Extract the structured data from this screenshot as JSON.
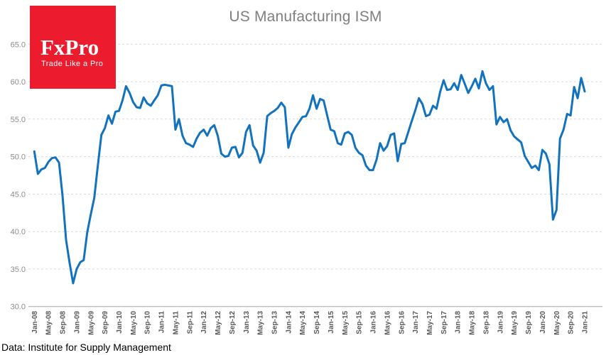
{
  "title": "US Manufacturing ISM",
  "footer": {
    "text": "Data: Institute for Supply Management"
  },
  "logo": {
    "brand": "FxPro",
    "tagline": "Trade Like a Pro",
    "background": "#EC1B2E"
  },
  "colors": {
    "line": "#1272BE",
    "grid": "#D9D9D9",
    "axis_line": "#BFBFBF",
    "title_text": "#7F7F7F",
    "y_tick_text": "#8C8C8C",
    "x_tick_text": "#595959"
  },
  "chart_data": {
    "type": "line",
    "title": "US Manufacturing ISM",
    "xlabel": "",
    "ylabel": "",
    "ylim": [
      30.0,
      65.0
    ],
    "grid": "dashed horizontal",
    "legend": "none",
    "y_ticks": [
      30,
      35,
      40,
      45,
      50,
      55,
      60,
      65
    ],
    "y_tick_labels": [
      "30.0",
      "35.0",
      "40.0",
      "45.0",
      "50.0",
      "55.0",
      "60.0",
      "65.0"
    ],
    "x_tick_every_months": 4,
    "x_tick_labels": [
      "Jan-08",
      "May-08",
      "Sep-08",
      "Jan-09",
      "May-09",
      "Sep-09",
      "Jan-10",
      "May-10",
      "Sep-10",
      "Jan-11",
      "May-11",
      "Sep-11",
      "Jan-12",
      "May-12",
      "Sep-12",
      "Jan-13",
      "May-13",
      "Sep-13",
      "Jan-14",
      "May-14",
      "Sep-14",
      "Jan-15",
      "May-15",
      "Sep-15",
      "Jan-16",
      "May-16",
      "Sep-16",
      "Jan-17",
      "May-17",
      "Sep-17",
      "Jan-18",
      "May-18",
      "Sep-18",
      "Jan-19",
      "May-19",
      "Sep-19",
      "Jan-20",
      "May-20",
      "Sep-20",
      "Jan-21"
    ],
    "x_range": "monthly from Jan-2008 to Jan-2021",
    "values": [
      50.7,
      47.7,
      48.3,
      48.5,
      49.3,
      49.8,
      49.9,
      49.2,
      44.8,
      38.9,
      35.8,
      33.1,
      35.0,
      35.9,
      36.2,
      39.9,
      42.3,
      44.5,
      48.8,
      52.9,
      53.8,
      55.5,
      54.4,
      56.0,
      56.1,
      57.5,
      59.4,
      58.5,
      57.3,
      56.6,
      56.5,
      57.9,
      57.1,
      56.8,
      57.5,
      58.2,
      59.5,
      59.6,
      59.5,
      59.4,
      53.6,
      55.0,
      52.8,
      51.8,
      51.6,
      51.3,
      52.4,
      53.2,
      53.6,
      52.8,
      53.8,
      54.2,
      52.8,
      50.4,
      50.0,
      50.1,
      51.2,
      51.3,
      49.9,
      50.5,
      53.3,
      54.2,
      51.5,
      50.8,
      49.2,
      50.5,
      55.4,
      55.8,
      56.1,
      56.5,
      57.2,
      56.6,
      51.2,
      53.0,
      53.9,
      54.6,
      55.3,
      55.4,
      56.4,
      58.2,
      56.4,
      57.7,
      57.5,
      55.5,
      53.6,
      53.4,
      51.8,
      51.6,
      53.1,
      53.3,
      52.9,
      51.2,
      50.5,
      50.2,
      48.8,
      48.2,
      48.2,
      49.6,
      51.8,
      50.8,
      51.4,
      52.9,
      53.1,
      49.4,
      51.7,
      51.8,
      53.3,
      54.8,
      56.2,
      57.8,
      57.0,
      55.4,
      55.6,
      56.8,
      56.4,
      58.6,
      60.2,
      58.9,
      59.0,
      59.8,
      58.9,
      60.9,
      59.7,
      58.5,
      59.4,
      60.4,
      59.1,
      61.4,
      59.8,
      58.9,
      59.4,
      54.3,
      55.3,
      54.6,
      55.0,
      53.5,
      52.7,
      52.3,
      51.9,
      50.1,
      49.3,
      48.5,
      48.8,
      48.2,
      50.9,
      50.4,
      49.0,
      41.6,
      42.9,
      52.4,
      53.6,
      55.7,
      55.5,
      59.3,
      57.8,
      60.5,
      58.7
    ]
  }
}
